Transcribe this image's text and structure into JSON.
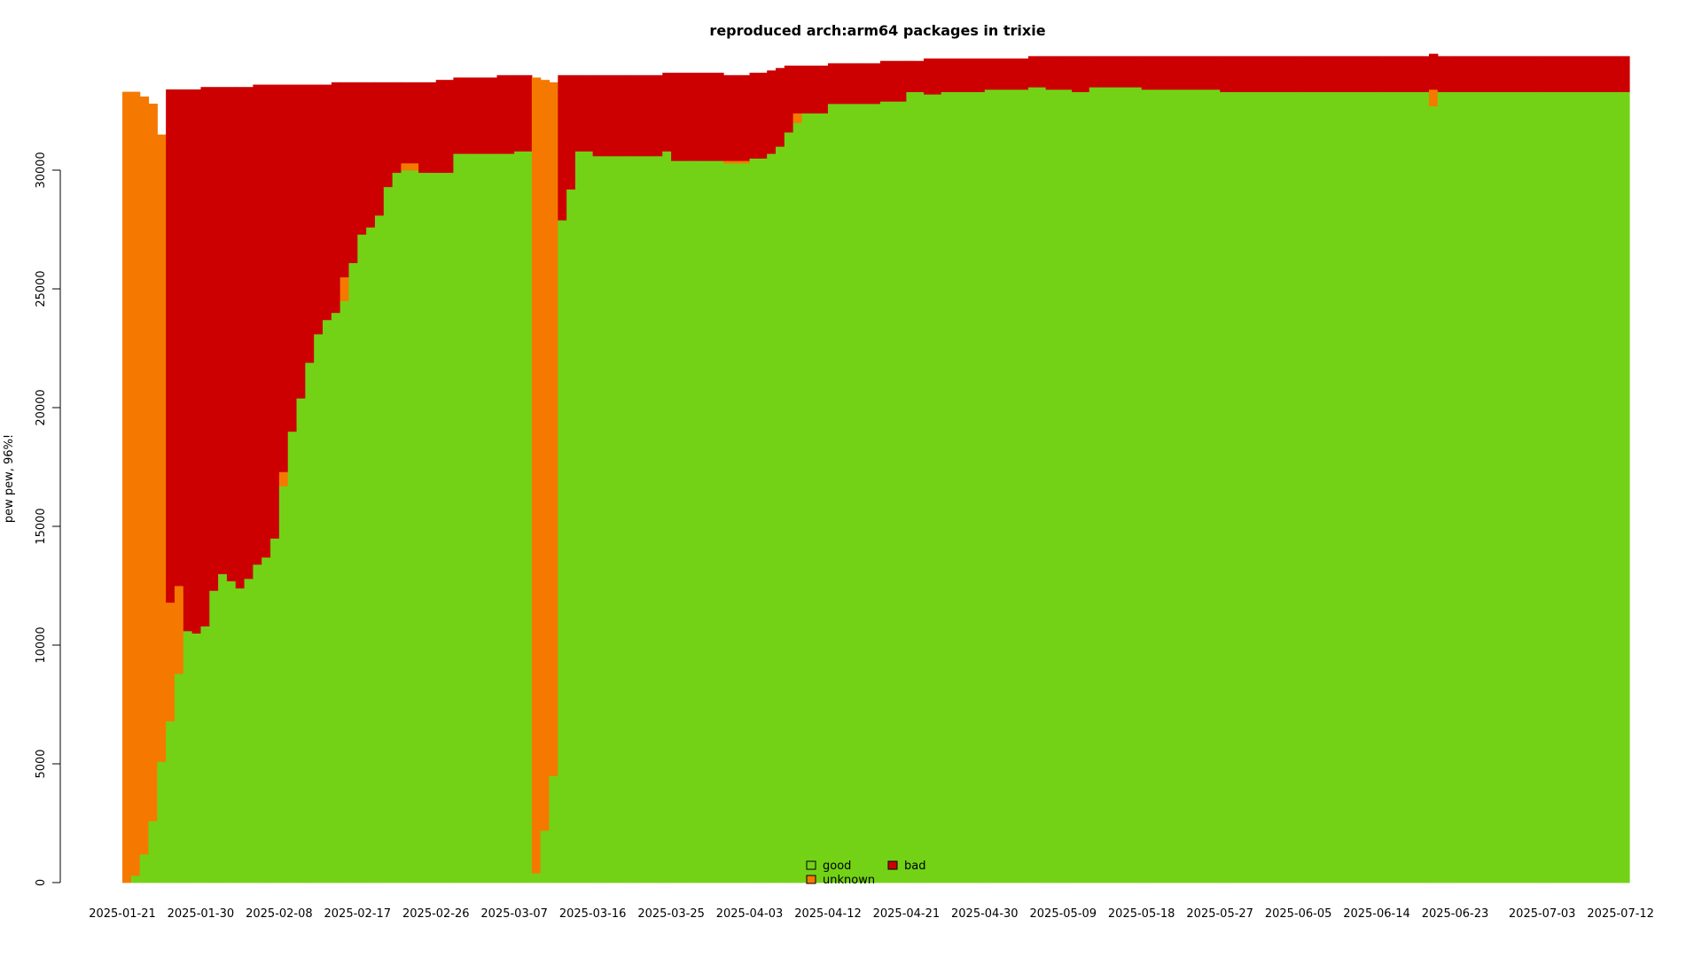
{
  "chart_data": {
    "type": "area",
    "stacked": true,
    "title": "reproduced arch:arm64 packages in trixie",
    "ylabel": "pew pew, 96%!",
    "xlabel": "",
    "ylim": [
      0,
      34000
    ],
    "y_ticks": [
      0,
      5000,
      10000,
      15000,
      20000,
      25000,
      30000
    ],
    "y_tick_labels": [
      "0",
      "5000",
      "10000",
      "15000",
      "20000",
      "25000",
      "30000"
    ],
    "x_tick_labels": [
      "2025-01-21",
      "2025-01-30",
      "2025-02-08",
      "2025-02-17",
      "2025-02-26",
      "2025-03-07",
      "2025-03-16",
      "2025-03-25",
      "2025-04-03",
      "2025-04-12",
      "2025-04-21",
      "2025-04-30",
      "2025-05-09",
      "2025-05-18",
      "2025-05-27",
      "2025-06-05",
      "2025-06-14",
      "2025-06-23",
      "2025-07-03",
      "2025-07-12"
    ],
    "colors": {
      "good": "#73d216",
      "unknown": "#f57900",
      "bad": "#cc0000"
    },
    "legend": {
      "position": "bottom-center",
      "entries": [
        "good",
        "unknown",
        "bad"
      ]
    },
    "x": [
      "2025-01-21",
      "2025-01-22",
      "2025-01-23",
      "2025-01-24",
      "2025-01-25",
      "2025-01-26",
      "2025-01-27",
      "2025-01-28",
      "2025-01-29",
      "2025-01-30",
      "2025-01-31",
      "2025-02-01",
      "2025-02-02",
      "2025-02-03",
      "2025-02-04",
      "2025-02-05",
      "2025-02-06",
      "2025-02-07",
      "2025-02-08",
      "2025-02-09",
      "2025-02-10",
      "2025-02-11",
      "2025-02-12",
      "2025-02-13",
      "2025-02-14",
      "2025-02-15",
      "2025-02-16",
      "2025-02-17",
      "2025-02-18",
      "2025-02-19",
      "2025-02-20",
      "2025-02-21",
      "2025-02-22",
      "2025-02-24",
      "2025-02-26",
      "2025-02-28",
      "2025-03-02",
      "2025-03-05",
      "2025-03-07",
      "2025-03-09",
      "2025-03-10",
      "2025-03-11",
      "2025-03-12",
      "2025-03-13",
      "2025-03-14",
      "2025-03-16",
      "2025-03-20",
      "2025-03-24",
      "2025-03-25",
      "2025-03-27",
      "2025-03-31",
      "2025-04-03",
      "2025-04-05",
      "2025-04-06",
      "2025-04-07",
      "2025-04-08",
      "2025-04-09",
      "2025-04-10",
      "2025-04-12",
      "2025-04-16",
      "2025-04-18",
      "2025-04-21",
      "2025-04-23",
      "2025-04-25",
      "2025-04-30",
      "2025-05-05",
      "2025-05-07",
      "2025-05-08",
      "2025-05-10",
      "2025-05-12",
      "2025-05-18",
      "2025-05-27",
      "2025-06-05",
      "2025-06-14",
      "2025-06-20",
      "2025-06-21",
      "2025-06-22",
      "2025-06-23",
      "2025-07-03",
      "2025-07-12",
      "2025-07-13"
    ],
    "series": [
      {
        "name": "good",
        "values": [
          0,
          300,
          1200,
          2600,
          5100,
          6800,
          8800,
          10600,
          10500,
          10800,
          12300,
          13000,
          12700,
          12400,
          12800,
          13400,
          13700,
          14500,
          16700,
          19000,
          20400,
          21900,
          23100,
          23700,
          24000,
          24500,
          26100,
          27300,
          27600,
          28100,
          29300,
          29900,
          30000,
          29900,
          29900,
          30700,
          30700,
          30700,
          30800,
          400,
          2200,
          4500,
          27900,
          29200,
          30800,
          30600,
          30600,
          30800,
          30400,
          30400,
          30300,
          30500,
          30700,
          31000,
          31600,
          32000,
          32400,
          32400,
          32800,
          32800,
          32900,
          33300,
          33200,
          33300,
          33400,
          33500,
          33400,
          33400,
          33300,
          33500,
          33400,
          33300,
          33300,
          33300,
          32700,
          33300,
          33300,
          33300,
          33300,
          33300,
          33300
        ]
      },
      {
        "name": "unknown",
        "values": [
          33300,
          33000,
          31900,
          30200,
          26400,
          5000,
          3700,
          0,
          0,
          0,
          0,
          0,
          0,
          0,
          0,
          0,
          0,
          0,
          600,
          0,
          0,
          0,
          0,
          0,
          0,
          1000,
          0,
          0,
          0,
          0,
          0,
          0,
          300,
          0,
          0,
          0,
          0,
          0,
          0,
          33500,
          31600,
          29200,
          0,
          0,
          0,
          0,
          0,
          0,
          0,
          0,
          100,
          0,
          0,
          0,
          0,
          400,
          0,
          0,
          0,
          0,
          0,
          0,
          0,
          0,
          0,
          0,
          0,
          0,
          0,
          0,
          0,
          0,
          0,
          0,
          700,
          0,
          0,
          0,
          0,
          0,
          0
        ]
      },
      {
        "name": "bad",
        "values": [
          0,
          0,
          0,
          0,
          0,
          21600,
          20900,
          22800,
          22900,
          22700,
          21200,
          20500,
          20800,
          21100,
          20700,
          20200,
          19900,
          19100,
          16300,
          14600,
          13200,
          11700,
          10500,
          9900,
          9700,
          8200,
          7600,
          6400,
          6100,
          5600,
          4400,
          3800,
          3400,
          3800,
          3900,
          3200,
          3200,
          3300,
          3200,
          0,
          0,
          0,
          6100,
          4800,
          3200,
          3400,
          3400,
          3300,
          3700,
          3700,
          3600,
          3600,
          3500,
          3300,
          2800,
          2000,
          2000,
          2000,
          1700,
          1700,
          1700,
          1300,
          1500,
          1400,
          1300,
          1300,
          1400,
          1400,
          1500,
          1300,
          1400,
          1500,
          1500,
          1500,
          1500,
          1500,
          1500,
          1500,
          1500,
          1500,
          1500
        ]
      }
    ]
  }
}
